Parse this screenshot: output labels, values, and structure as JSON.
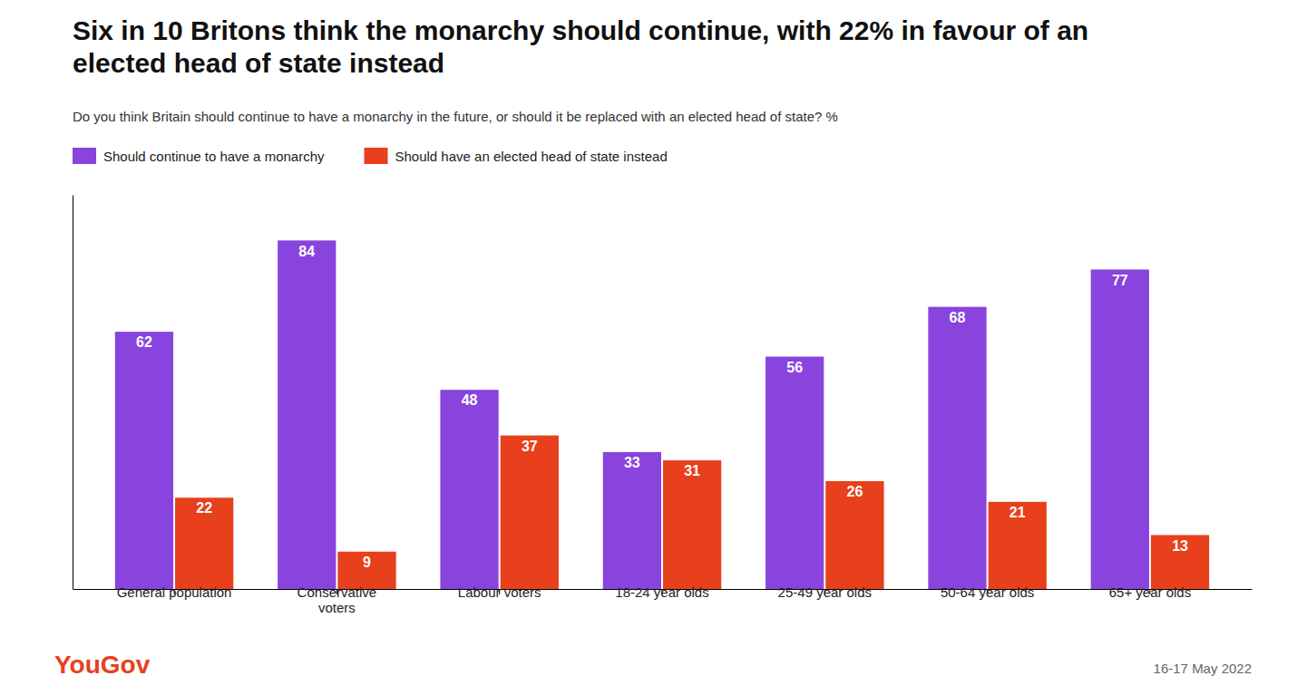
{
  "chart_data": {
    "type": "bar",
    "title": "Six in 10 Britons think the monarchy should continue, with 22% in favour of an\nelected head of state instead",
    "subtitle": "Do you think Britain should continue to have a monarchy in the future, or should it be replaced with an elected head of state? %",
    "categories": [
      "General population",
      "Conservative\nvoters",
      "Labour voters",
      "18-24 year olds",
      "25-49 year olds",
      "50-64 year olds",
      "65+ year olds"
    ],
    "series": [
      {
        "name": "Should continue to have a monarchy",
        "color": "#8844dd",
        "values": [
          62,
          84,
          48,
          33,
          56,
          68,
          77
        ]
      },
      {
        "name": "Should have an elected head of state instead",
        "color": "#e8401c",
        "values": [
          22,
          9,
          37,
          31,
          26,
          21,
          13
        ]
      }
    ],
    "ylim": [
      0,
      95
    ],
    "grid": false,
    "legend": "top",
    "data_labels": true,
    "tick_labels": "x",
    "annotations": [
      {
        "text": "YouGov",
        "color": "#e8401c"
      },
      {
        "text": "16-17 May 2022"
      }
    ]
  }
}
